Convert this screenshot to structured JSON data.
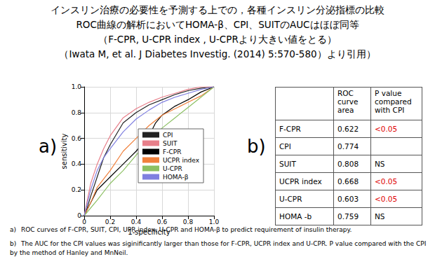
{
  "header": {
    "lines": [
      "インスリン治療の必要性を予測する上での，各種インスリン分泌指標の比較",
      "ROC曲線の解析においてHOMA-β、CPI、SUITのAUCはほぼ同等",
      "（F-CPR, U-CPR index , U-CPRより大きい値をとる）",
      "（Iwata M, et al. J Diabetes Investig. (2014) 5:570-580）より引用）"
    ]
  },
  "panel_labels": [
    "a)",
    "b)"
  ],
  "chart_data": {
    "type": "line",
    "x_label": "1-specificity",
    "y_label": "sensitivity",
    "xlim": [
      0,
      1
    ],
    "ylim": [
      0,
      1
    ],
    "xticks": [
      0,
      0.2,
      0.4,
      0.6,
      0.8,
      {
        "value": 1,
        "label": "1.0"
      }
    ],
    "yticks": [
      0,
      0.2,
      0.4,
      0.6,
      0.8,
      {
        "value": 1,
        "label": "1.0"
      }
    ],
    "grid": true,
    "legend": "lower right",
    "series": [
      {
        "name": "CPI",
        "color": "#222222",
        "x": [
          0,
          0.02,
          0.05,
          0.1,
          0.15,
          0.2,
          0.3,
          0.4,
          0.5,
          0.6,
          0.7,
          0.8,
          0.9,
          1
        ],
        "values": [
          0,
          0.05,
          0.15,
          0.3,
          0.45,
          0.55,
          0.72,
          0.8,
          0.86,
          0.9,
          0.94,
          0.97,
          0.99,
          1
        ]
      },
      {
        "name": "SUIT",
        "color": "#e87f8a",
        "x": [
          0,
          0.02,
          0.05,
          0.1,
          0.15,
          0.2,
          0.3,
          0.4,
          0.5,
          0.6,
          0.7,
          0.8,
          0.9,
          1
        ],
        "values": [
          0,
          0.1,
          0.25,
          0.4,
          0.52,
          0.62,
          0.76,
          0.83,
          0.88,
          0.92,
          0.95,
          0.98,
          1,
          1
        ]
      },
      {
        "name": "F-CPR",
        "color": "#000000",
        "x": [
          0,
          0.05,
          0.1,
          0.2,
          0.3,
          0.4,
          0.5,
          0.55,
          0.6,
          0.7,
          0.8,
          0.9,
          1
        ],
        "values": [
          0,
          0.1,
          0.2,
          0.3,
          0.4,
          0.5,
          0.62,
          0.72,
          0.78,
          0.85,
          0.9,
          0.96,
          1
        ]
      },
      {
        "name": "UCPR index",
        "color": "#f0803c",
        "x": [
          0,
          0.05,
          0.1,
          0.2,
          0.3,
          0.4,
          0.5,
          0.6,
          0.7,
          0.8,
          0.9,
          1
        ],
        "values": [
          0,
          0.1,
          0.22,
          0.35,
          0.5,
          0.6,
          0.7,
          0.78,
          0.83,
          0.88,
          0.93,
          1
        ]
      },
      {
        "name": "U-CPR",
        "color": "#8cc063",
        "x": [
          0,
          0.1,
          0.2,
          0.3,
          0.4,
          0.5,
          0.6,
          0.7,
          0.8,
          0.9,
          1
        ],
        "values": [
          0,
          0.12,
          0.25,
          0.35,
          0.47,
          0.58,
          0.68,
          0.76,
          0.84,
          0.92,
          1
        ]
      },
      {
        "name": "HOMA-β",
        "color": "#7f7fe0",
        "x": [
          0,
          0.02,
          0.05,
          0.1,
          0.15,
          0.2,
          0.3,
          0.4,
          0.5,
          0.6,
          0.7,
          0.8,
          0.9,
          1
        ],
        "values": [
          0,
          0.08,
          0.2,
          0.35,
          0.45,
          0.52,
          0.65,
          0.75,
          0.82,
          0.88,
          0.92,
          0.95,
          0.98,
          1
        ]
      }
    ]
  },
  "table": {
    "header": [
      "ROC curve area",
      "P value compared with CPI"
    ],
    "rows": [
      {
        "label": "F-CPR",
        "auc": 0.622,
        "p": "<0.05",
        "p_color": "#e00000"
      },
      {
        "label": "CPI",
        "auc": 0.774,
        "p": null,
        "p_color": null
      },
      {
        "label": "SUIT",
        "auc": 0.808,
        "p": "NS",
        "p_color": "#000000"
      },
      {
        "label": "UCPR index",
        "auc": 0.668,
        "p": "<0.05",
        "p_color": "#e00000"
      },
      {
        "label": "U-CPR",
        "auc": 0.603,
        "p": "<0.05",
        "p_color": "#e00000"
      },
      {
        "label": "HOMA -b",
        "auc": 0.759,
        "p": "NS",
        "p_color": "#000000"
      }
    ]
  },
  "captions": [
    {
      "label": "a)",
      "text": "ROC curves of F-CPR, SUIT, CPI, UPR index, U-CPR and HOMA-β to predict requirement of insulin therapy."
    },
    {
      "label": "b)",
      "text": "The AUC for the CPI values was siginificantly larger than those for  F-CPR, UCPR index and U-CPR. P value compared with the CPI by the method of Hanley and MnNeil."
    }
  ]
}
